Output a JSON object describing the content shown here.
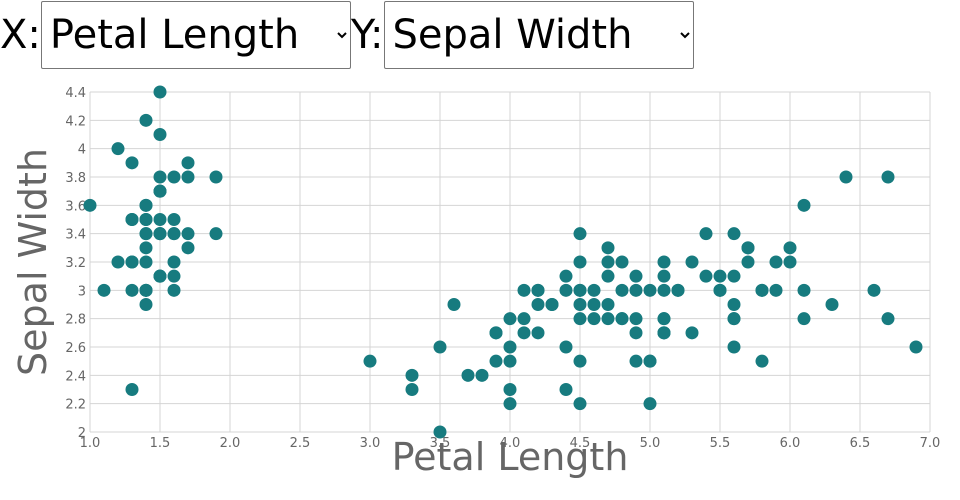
{
  "controls": {
    "x_label": "X:",
    "x_selected": "Petal Length",
    "y_label": "Y:",
    "y_selected": "Sepal Width"
  },
  "chart_data": {
    "type": "scatter",
    "x_label": "Petal Length",
    "y_label": "Sepal Width",
    "color": "#177b7f",
    "grid": true,
    "xlim": [
      1,
      7
    ],
    "ylim": [
      2,
      4.4
    ],
    "xticks": [
      {
        "value": 1,
        "label": "1.0"
      },
      1.5,
      {
        "value": 2,
        "label": "2.0"
      },
      2.5,
      {
        "value": 3,
        "label": "3.0"
      },
      3.5,
      {
        "value": 4,
        "label": "4.0"
      },
      4.5,
      {
        "value": 5,
        "label": "5.0"
      },
      5.5,
      {
        "value": 6,
        "label": "6.0"
      },
      6.5,
      {
        "value": 7,
        "label": "7.0"
      }
    ],
    "yticks": [
      2,
      2.2,
      2.4,
      2.6,
      2.8,
      3,
      3.2,
      3.4,
      3.6,
      3.8,
      4,
      4.2,
      4.4
    ],
    "x": [
      1.4,
      1.4,
      1.3,
      1.5,
      1.4,
      1.7,
      1.4,
      1.5,
      1.4,
      1.5,
      1.5,
      1.6,
      1.4,
      1.1,
      1.2,
      1.5,
      1.3,
      1.4,
      1.7,
      1.5,
      1.7,
      1.5,
      1.0,
      1.7,
      1.9,
      1.6,
      1.6,
      1.5,
      1.4,
      1.6,
      1.6,
      1.5,
      1.5,
      1.4,
      1.5,
      1.2,
      1.3,
      1.4,
      1.3,
      1.5,
      1.3,
      1.3,
      1.3,
      1.6,
      1.9,
      1.4,
      1.6,
      1.4,
      1.5,
      1.4,
      4.7,
      4.5,
      4.9,
      4.0,
      4.6,
      4.5,
      4.7,
      3.3,
      4.6,
      3.9,
      3.5,
      4.2,
      4.0,
      4.7,
      3.6,
      4.4,
      4.5,
      4.1,
      4.5,
      3.9,
      4.8,
      4.0,
      4.9,
      4.7,
      4.3,
      4.4,
      4.8,
      5.0,
      4.5,
      3.5,
      3.8,
      3.7,
      3.9,
      5.1,
      4.5,
      4.5,
      4.7,
      4.4,
      4.1,
      4.0,
      4.4,
      4.6,
      4.0,
      3.3,
      4.2,
      4.2,
      4.2,
      4.3,
      3.0,
      4.1,
      6.0,
      5.1,
      5.9,
      5.6,
      5.8,
      6.6,
      4.5,
      6.3,
      5.8,
      6.1,
      5.1,
      5.3,
      5.5,
      5.0,
      5.1,
      5.3,
      5.5,
      6.7,
      6.9,
      5.0,
      5.7,
      4.9,
      6.7,
      4.9,
      5.7,
      6.0,
      4.8,
      4.9,
      5.6,
      5.8,
      6.1,
      6.4,
      5.6,
      5.1,
      5.6,
      6.1,
      5.6,
      5.5,
      4.8,
      5.4,
      5.6,
      5.1,
      5.1,
      5.9,
      5.7,
      5.2,
      5.0,
      5.2,
      5.4,
      5.1
    ],
    "values": [
      3.5,
      3.0,
      3.2,
      3.1,
      3.6,
      3.9,
      3.4,
      3.4,
      2.9,
      3.1,
      3.7,
      3.4,
      3.0,
      3.0,
      4.0,
      4.4,
      3.9,
      3.5,
      3.8,
      3.8,
      3.4,
      3.7,
      3.6,
      3.3,
      3.4,
      3.0,
      3.4,
      3.5,
      3.4,
      3.2,
      3.1,
      3.4,
      4.1,
      4.2,
      3.1,
      3.2,
      3.5,
      3.6,
      3.0,
      3.4,
      3.5,
      2.3,
      3.2,
      3.5,
      3.8,
      3.0,
      3.8,
      3.2,
      3.7,
      3.3,
      3.2,
      3.2,
      3.1,
      2.3,
      2.8,
      2.8,
      3.3,
      2.4,
      2.9,
      2.7,
      2.0,
      3.0,
      2.2,
      2.9,
      2.9,
      3.1,
      3.0,
      2.7,
      2.2,
      2.5,
      3.2,
      2.8,
      2.5,
      2.8,
      2.9,
      3.0,
      2.8,
      3.0,
      2.9,
      2.6,
      2.4,
      2.4,
      2.7,
      2.7,
      3.0,
      3.4,
      3.1,
      2.3,
      3.0,
      2.5,
      2.6,
      3.0,
      2.6,
      2.3,
      2.7,
      3.0,
      2.9,
      2.9,
      2.5,
      2.8,
      3.3,
      2.7,
      3.0,
      2.9,
      3.0,
      3.0,
      2.5,
      2.9,
      2.5,
      3.6,
      3.2,
      2.7,
      3.0,
      2.5,
      2.8,
      3.2,
      3.0,
      3.8,
      2.6,
      2.2,
      3.2,
      2.8,
      2.8,
      2.7,
      3.3,
      3.2,
      2.8,
      3.0,
      2.8,
      3.0,
      2.8,
      3.8,
      2.8,
      2.8,
      2.6,
      3.0,
      3.4,
      3.1,
      3.0,
      3.1,
      3.1,
      3.1,
      2.7,
      3.2,
      3.3,
      3.0,
      2.5,
      3.0,
      3.4,
      3.0
    ]
  }
}
